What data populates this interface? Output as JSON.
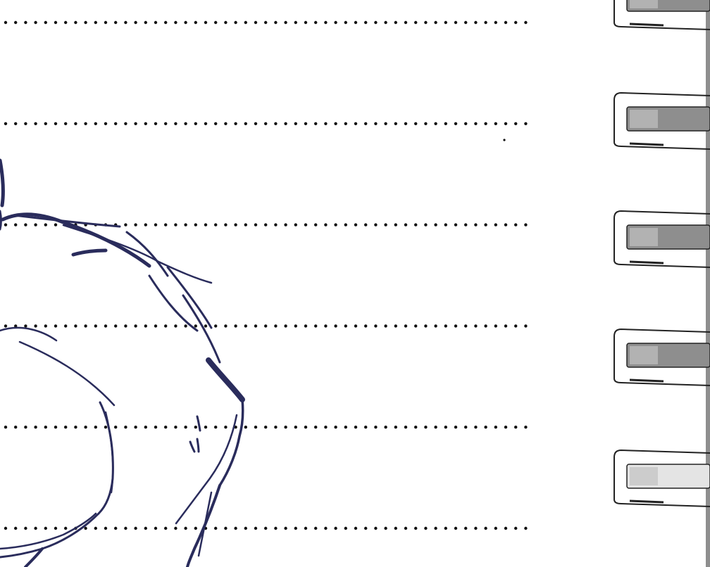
{
  "page": {
    "background": "#ffffff"
  },
  "colors": {
    "ink": "#2a2c5c",
    "dots": "#111111",
    "binding_outline": "#222222",
    "binding_fill": "#8e8e8e",
    "binding_fill_light": "#c2c2c2",
    "binding_fill_last": "#e4e4e4"
  },
  "ruled_lines": {
    "count": 6,
    "style": "dotted"
  },
  "binding": {
    "type": "spiral",
    "visible_rings": 5,
    "icon": "spiral-binding-icon"
  },
  "sketch": {
    "medium": "ink",
    "icon": "ink-sketch-icon"
  }
}
